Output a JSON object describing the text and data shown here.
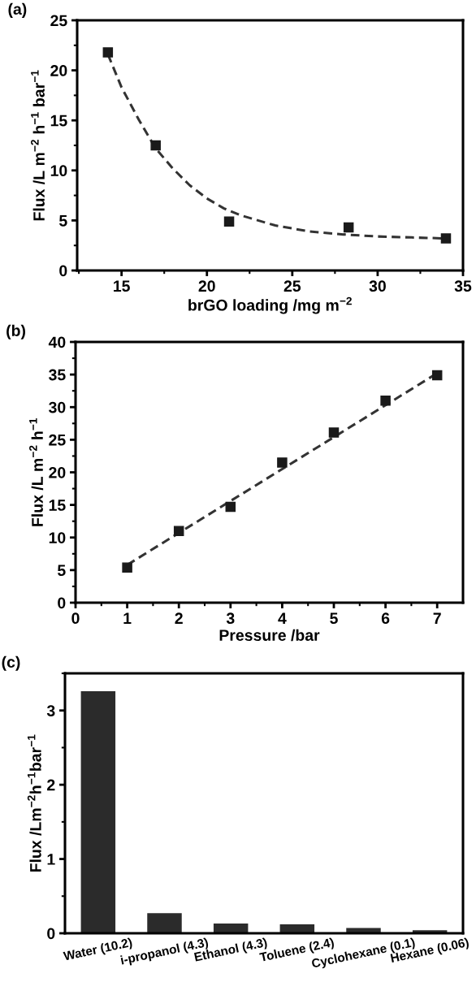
{
  "chart_data": [
    {
      "type": "scatter",
      "title": "(a)",
      "xlabel": "brGO loading /mg m$^{−2}$",
      "ylabel": "Flux /L m$^{−2}$ h$^{−1}$ bar$^{−1}$",
      "xlim": [
        12.4,
        35
      ],
      "xticks": [
        15,
        20,
        25,
        30,
        35
      ],
      "ylim": [
        0,
        25
      ],
      "yticks": [
        0,
        5,
        10,
        15,
        20,
        25
      ],
      "grid": false,
      "legend": false,
      "series": [
        {
          "color": "#1a1a1a",
          "marker": "square",
          "x": [
            14.2,
            17,
            21.3,
            28.3,
            34
          ],
          "values": [
            21.8,
            12.5,
            4.9,
            4.3,
            3.2
          ]
        },
        {
          "type": "line",
          "color": "#333333",
          "line_style": "dashed",
          "marker": "none",
          "x": [
            14.2,
            15,
            16,
            17,
            18,
            19,
            20,
            21,
            22,
            24,
            26,
            28,
            30,
            32,
            34
          ],
          "values": [
            21.6,
            18.3,
            15.1,
            12.2,
            10.2,
            8.5,
            7.2,
            6.2,
            5.5,
            4.5,
            3.9,
            3.6,
            3.4,
            3.3,
            3.2
          ]
        }
      ]
    },
    {
      "type": "scatter",
      "title": "(b)",
      "xlabel": "Pressure /bar",
      "ylabel": "Flux /L m$^{−2}$ h$^{−1}$",
      "xlim": [
        0,
        7.5
      ],
      "xticks": [
        0,
        1,
        2,
        3,
        4,
        5,
        6,
        7
      ],
      "ylim": [
        0,
        40
      ],
      "yticks": [
        0,
        5,
        10,
        15,
        20,
        25,
        30,
        35,
        40
      ],
      "grid": false,
      "legend": false,
      "series": [
        {
          "color": "#1a1a1a",
          "marker": "square",
          "x": [
            1,
            2,
            3,
            4,
            5,
            6,
            7
          ],
          "values": [
            5.4,
            11.0,
            14.7,
            21.5,
            26.1,
            31.0,
            34.9
          ]
        },
        {
          "type": "line",
          "color": "#333333",
          "line_style": "dashed",
          "marker": "none",
          "x": [
            1,
            7
          ],
          "values": [
            5.8,
            35.2
          ]
        }
      ]
    },
    {
      "type": "bar",
      "title": "(c)",
      "ylabel": "Flux /Lm$^{−2}$h$^{−1}$bar$^{−1}$",
      "categories": [
        "Water (10.2)",
        "i-propanol (4.3)",
        "Ethanol (4.3)",
        "Toluene (2.4)",
        "Cyclohexane (0.1)",
        "Hexane (0.06)"
      ],
      "ylim": [
        0,
        3.5
      ],
      "yticks": [
        0,
        1,
        2,
        3
      ],
      "grid": false,
      "legend": false,
      "series": [
        {
          "color": "#2b2b2b",
          "values": [
            3.26,
            0.27,
            0.13,
            0.12,
            0.07,
            0.04
          ]
        }
      ]
    }
  ]
}
